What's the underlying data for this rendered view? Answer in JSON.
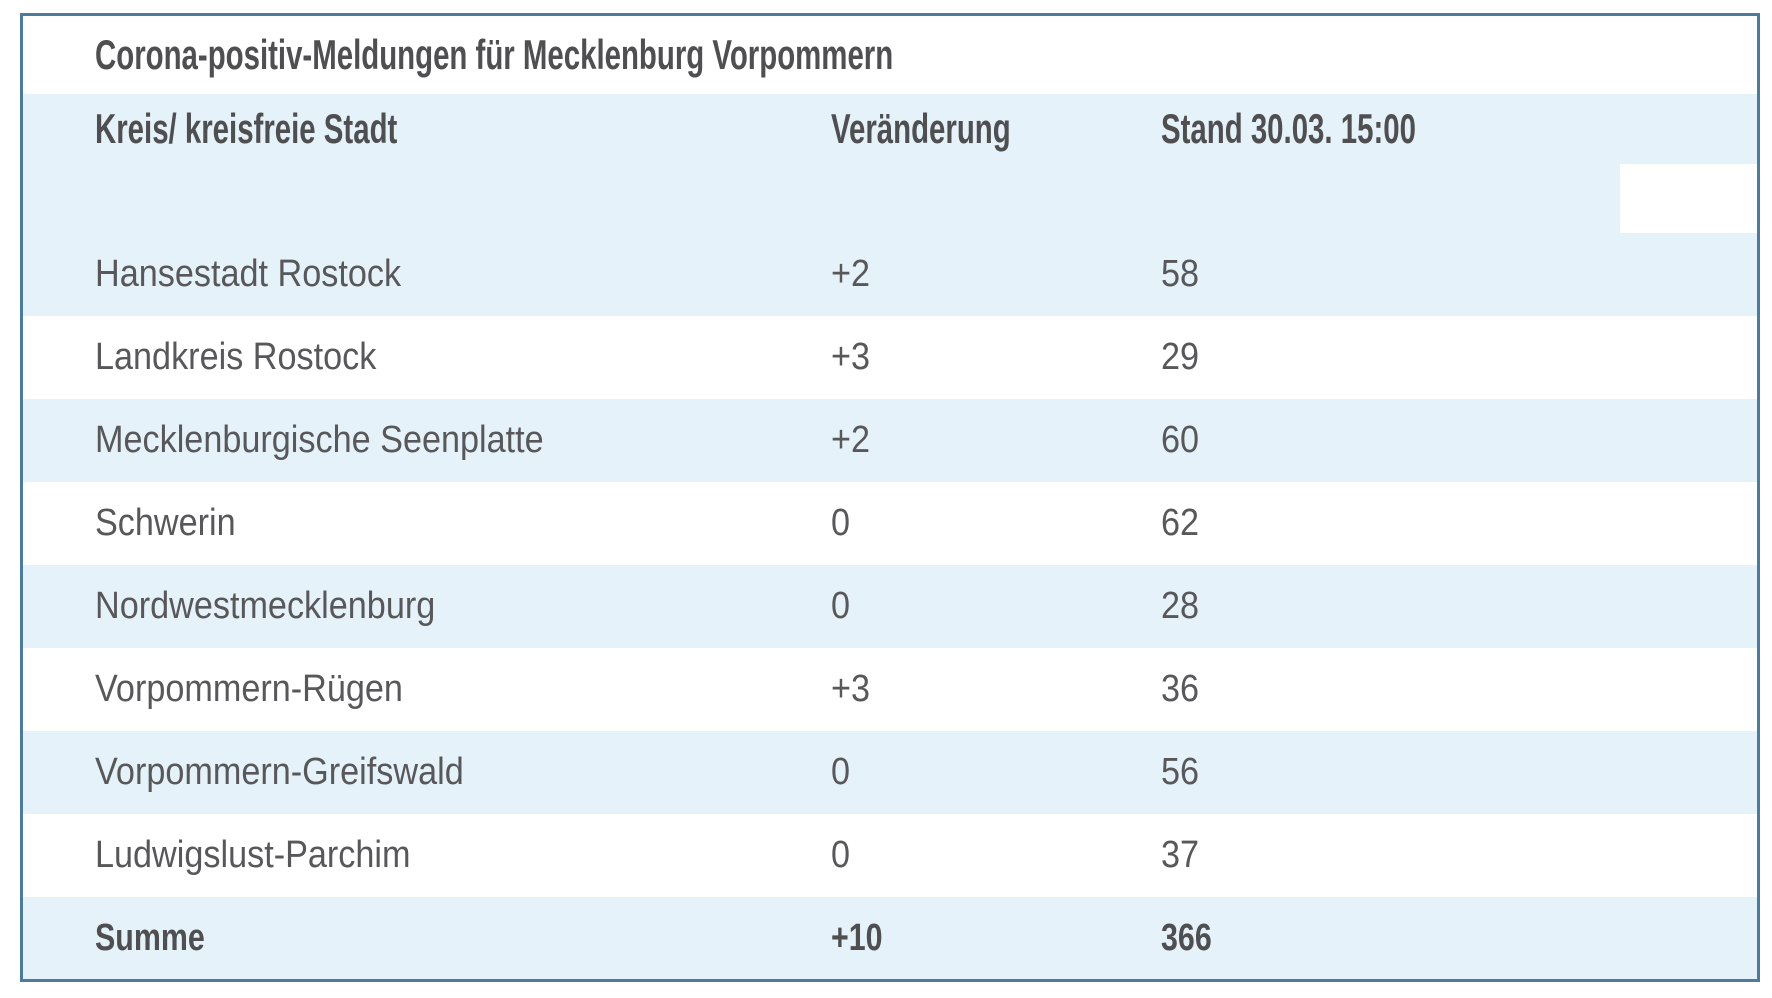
{
  "chart_data": {
    "type": "table",
    "title": "Corona-positiv-Meldungen für Mecklenburg Vorpommern",
    "columns": [
      "Kreis/ kreisfreie Stadt",
      "Veränderung",
      "Stand 30.03. 15:00"
    ],
    "rows": [
      [
        "Hansestadt Rostock",
        "+2",
        58
      ],
      [
        "Landkreis Rostock",
        "+3",
        29
      ],
      [
        "Mecklenburgische Seenplatte",
        "+2",
        60
      ],
      [
        "Schwerin",
        "0",
        62
      ],
      [
        "Nordwestmecklenburg",
        "0",
        28
      ],
      [
        "Vorpommern-Rügen",
        "+3",
        36
      ],
      [
        "Vorpommern-Greifswald",
        "0",
        56
      ],
      [
        "Ludwigslust-Parchim",
        "0",
        37
      ]
    ],
    "total_row": [
      "Summe",
      "+10",
      366
    ],
    "layout_hints": {
      "striped": true,
      "stripe_color": "#e5f2f9",
      "border_color": "#4d7b9c",
      "header_background": "#e5f2f9",
      "grid": "off",
      "alignment": "left"
    }
  },
  "table": {
    "title": "Corona-positiv-Meldungen für Mecklenburg Vorpommern",
    "header": {
      "col1": "Kreis/ kreisfreie Stadt",
      "col2": "Veränderung",
      "col3": "Stand 30.03. 15:00"
    },
    "rows": [
      {
        "kreis": "Hansestadt Rostock",
        "veraenderung": "+2",
        "stand": "58"
      },
      {
        "kreis": "Landkreis Rostock",
        "veraenderung": "+3",
        "stand": "29"
      },
      {
        "kreis": "Mecklenburgische Seenplatte",
        "veraenderung": "+2",
        "stand": "60"
      },
      {
        "kreis": "Schwerin",
        "veraenderung": "0",
        "stand": "62"
      },
      {
        "kreis": "Nordwestmecklenburg",
        "veraenderung": "0",
        "stand": "28"
      },
      {
        "kreis": "Vorpommern-Rügen",
        "veraenderung": "+3",
        "stand": "36"
      },
      {
        "kreis": "Vorpommern-Greifswald",
        "veraenderung": "0",
        "stand": "56"
      },
      {
        "kreis": "Ludwigslust-Parchim",
        "veraenderung": "0",
        "stand": "37"
      }
    ],
    "total": {
      "kreis": "Summe",
      "veraenderung": "+10",
      "stand": "366"
    },
    "colors": {
      "stripe_blue": "#e5f2f9",
      "border_blue": "#4d7b9c",
      "text_gray": "#58585b",
      "bold_text_gray": "#4f4f51"
    }
  }
}
